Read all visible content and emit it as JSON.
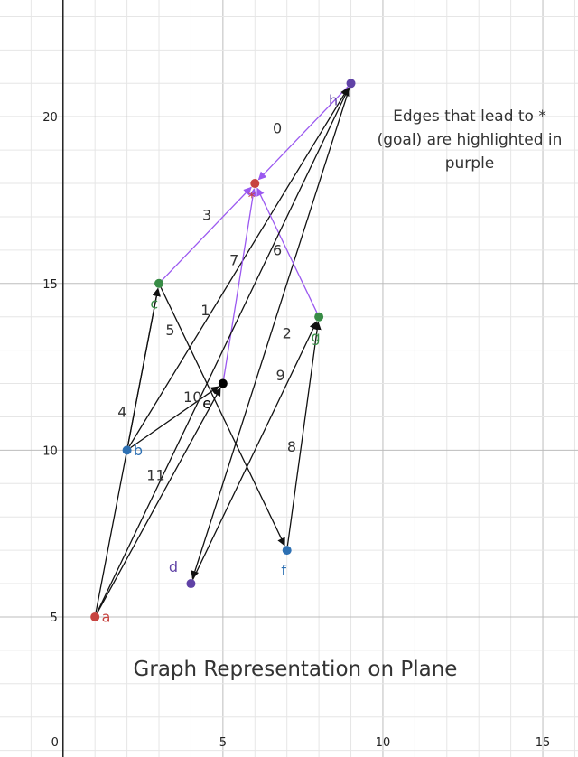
{
  "diagram": {
    "title": "Graph Representation on Plane",
    "note_lines": [
      {
        "text": "Edges that lead to *",
        "color": "#333333"
      },
      {
        "text": "(goal) are highlighted in",
        "color": "#333333"
      },
      {
        "text": "purple",
        "color": "#9b59f0"
      }
    ],
    "axes": {
      "x_ticks": [
        0,
        5,
        10,
        15
      ],
      "y_ticks": [
        5,
        10,
        15,
        20
      ],
      "x_range": [
        -1.97,
        16.1
      ],
      "y_range": [
        0.8,
        23.5
      ],
      "grid_minor_step": 1,
      "grid_major_step": 5
    },
    "colors": {
      "edge": "#111111",
      "highlight": "#9b59f0",
      "red": "#c74440",
      "blue": "#2d70b3",
      "green": "#388c46",
      "purple": "#6042a6",
      "black": "#000000"
    },
    "nodes": [
      {
        "id": "a",
        "label": "a",
        "x": 1,
        "y": 5,
        "color": "#c74440",
        "label_dx": 0.35,
        "label_dy": -0.15
      },
      {
        "id": "b",
        "label": "b",
        "x": 2,
        "y": 10,
        "color": "#2d70b3",
        "label_dx": 0.35,
        "label_dy": -0.15
      },
      {
        "id": "c",
        "label": "c",
        "x": 3,
        "y": 15,
        "color": "#388c46",
        "label_dx": -0.15,
        "label_dy": -0.75
      },
      {
        "id": "d",
        "label": "d",
        "x": 4,
        "y": 6,
        "color": "#6042a6",
        "label_dx": -0.55,
        "label_dy": 0.35
      },
      {
        "id": "e",
        "label": "e",
        "x": 5,
        "y": 12,
        "color": "#000000",
        "label_dx": -0.5,
        "label_dy": -0.75
      },
      {
        "id": "f",
        "label": "f",
        "x": 7,
        "y": 7,
        "color": "#2d70b3",
        "label_dx": -0.1,
        "label_dy": -0.75
      },
      {
        "id": "g",
        "label": "g",
        "x": 8,
        "y": 14,
        "color": "#388c46",
        "label_dx": -0.1,
        "label_dy": -0.75
      },
      {
        "id": "h",
        "label": "h",
        "x": 9,
        "y": 21,
        "color": "#6042a6",
        "label_dx": -0.55,
        "label_dy": -0.65
      },
      {
        "id": "goal",
        "label": "*",
        "x": 6,
        "y": 18,
        "color": "#c74440",
        "label_dx": -0.1,
        "label_dy": -0.55
      }
    ],
    "edges": [
      {
        "from": "h",
        "to": "goal",
        "label": "0",
        "highlight": true,
        "lx": 6.7,
        "ly": 19.5
      },
      {
        "from": "b",
        "to": "h",
        "label": "1",
        "highlight": false,
        "lx": 4.45,
        "ly": 14.05
      },
      {
        "from": "h",
        "to": "d",
        "label": "2",
        "highlight": false,
        "lx": 7.0,
        "ly": 13.35
      },
      {
        "from": "c",
        "to": "goal",
        "label": "3",
        "highlight": true,
        "lx": 4.5,
        "ly": 16.9
      },
      {
        "from": "b",
        "to": "c",
        "label": "4",
        "highlight": false,
        "lx": 1.85,
        "ly": 11.0
      },
      {
        "from": "c",
        "to": "f",
        "label": "5",
        "highlight": false,
        "lx": 3.35,
        "ly": 13.45
      },
      {
        "from": "g",
        "to": "goal",
        "label": "6",
        "highlight": true,
        "lx": 6.7,
        "ly": 15.85
      },
      {
        "from": "e",
        "to": "goal",
        "label": "7",
        "highlight": true,
        "lx": 5.35,
        "ly": 15.55
      },
      {
        "from": "f",
        "to": "g",
        "label": "8",
        "highlight": false,
        "lx": 7.15,
        "ly": 9.95
      },
      {
        "from": "d",
        "to": "g",
        "label": "9",
        "highlight": false,
        "lx": 6.8,
        "ly": 12.1
      },
      {
        "from": "b",
        "to": "e",
        "label": "10",
        "highlight": false,
        "lx": 4.05,
        "ly": 11.45
      },
      {
        "from": "a",
        "to": "e",
        "label": "11",
        "highlight": false,
        "lx": 2.9,
        "ly": 9.1
      },
      {
        "from": "a",
        "to": "c",
        "label": "",
        "highlight": false,
        "lx": 0,
        "ly": 0
      },
      {
        "from": "a",
        "to": "h",
        "label": "",
        "highlight": false,
        "lx": 0,
        "ly": 0
      }
    ]
  }
}
